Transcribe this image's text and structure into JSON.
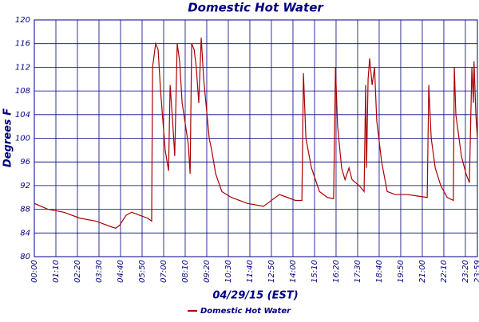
{
  "chart_data": {
    "type": "line",
    "title": "Domestic Hot Water",
    "x_label": "04/29/15 (EST)",
    "y_label": "Degrees F",
    "xlim": [
      0,
      1439
    ],
    "ylim": [
      80,
      120
    ],
    "yticks": [
      80,
      84,
      88,
      92,
      96,
      100,
      104,
      108,
      112,
      116,
      120
    ],
    "xticks": [
      {
        "value": 0,
        "label": "00:00"
      },
      {
        "value": 70,
        "label": "01:10"
      },
      {
        "value": 140,
        "label": "02:20"
      },
      {
        "value": 210,
        "label": "03:30"
      },
      {
        "value": 280,
        "label": "04:40"
      },
      {
        "value": 350,
        "label": "05:50"
      },
      {
        "value": 420,
        "label": "07:00"
      },
      {
        "value": 490,
        "label": "08:10"
      },
      {
        "value": 560,
        "label": "09:20"
      },
      {
        "value": 630,
        "label": "10:30"
      },
      {
        "value": 700,
        "label": "11:40"
      },
      {
        "value": 770,
        "label": "12:50"
      },
      {
        "value": 840,
        "label": "14:00"
      },
      {
        "value": 910,
        "label": "15:10"
      },
      {
        "value": 980,
        "label": "16:20"
      },
      {
        "value": 1050,
        "label": "17:30"
      },
      {
        "value": 1120,
        "label": "18:40"
      },
      {
        "value": 1190,
        "label": "19:50"
      },
      {
        "value": 1260,
        "label": "21:00"
      },
      {
        "value": 1330,
        "label": "22:10"
      },
      {
        "value": 1400,
        "label": "23:20"
      },
      {
        "value": 1439,
        "label": "23:59"
      }
    ],
    "grid": true,
    "x": [
      0,
      44,
      96,
      148,
      200,
      226,
      252,
      264,
      277,
      298,
      316,
      342,
      368,
      381,
      384,
      394,
      402,
      410,
      425,
      436,
      441,
      449,
      456,
      464,
      472,
      480,
      500,
      506,
      511,
      519,
      526,
      534,
      542,
      550,
      568,
      576,
      589,
      609,
      640,
      692,
      744,
      757,
      796,
      822,
      848,
      869,
      874,
      882,
      900,
      926,
      952,
      972,
      978,
      985,
      998,
      1009,
      1022,
      1032,
      1055,
      1071,
      1076,
      1079,
      1084,
      1089,
      1097,
      1105,
      1112,
      1128,
      1146,
      1172,
      1211,
      1237,
      1276,
      1281,
      1289,
      1302,
      1320,
      1341,
      1361,
      1364,
      1369,
      1387,
      1402,
      1413,
      1421,
      1426,
      1428,
      1434,
      1439
    ],
    "series": [
      {
        "name": "Domestic Hot Water",
        "color": "#aa0000",
        "values": [
          89,
          88,
          87.5,
          86.5,
          86,
          85.5,
          85,
          84.8,
          85.3,
          87,
          87.5,
          87,
          86.5,
          86,
          112,
          116,
          115,
          108,
          98,
          94.5,
          109,
          103,
          97,
          116,
          113,
          106,
          99,
          94,
          116,
          115,
          112,
          106,
          117,
          110,
          100,
          98,
          94,
          91,
          90,
          89,
          88.5,
          89,
          90.5,
          90,
          89.5,
          89.5,
          111,
          100,
          95,
          91,
          90,
          89.8,
          112,
          102,
          95,
          93,
          95,
          93,
          92,
          91,
          109,
          95,
          110,
          113.5,
          109,
          112,
          103,
          96,
          91,
          90.5,
          90.5,
          90.3,
          90,
          109,
          100,
          95,
          92,
          90,
          89.5,
          112,
          104,
          97,
          94,
          92.5,
          112,
          106,
          113,
          104,
          100
        ]
      }
    ]
  }
}
